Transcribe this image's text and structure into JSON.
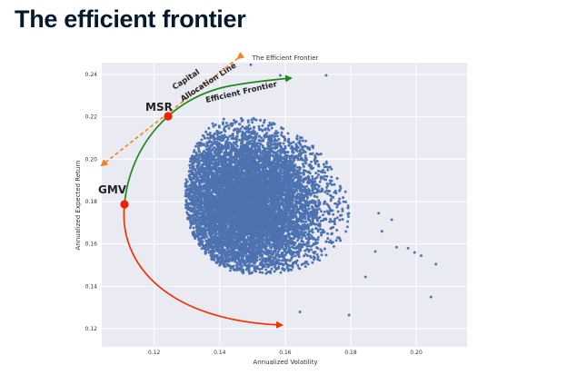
{
  "slide": {
    "title": "The efficient frontier"
  },
  "chart_data": {
    "type": "scatter",
    "title": "The Efficient Frontier",
    "xlabel": "Annualized Volatility",
    "ylabel": "Annualized Expected Return",
    "xlim": [
      0.104,
      0.2155
    ],
    "ylim": [
      0.1115,
      0.2455
    ],
    "x_ticks": [
      "0.12",
      "0.14",
      "0.16",
      "0.18",
      "0.20"
    ],
    "y_ticks": [
      "0.12",
      "0.14",
      "0.16",
      "0.18",
      "0.20",
      "0.22",
      "0.24"
    ],
    "grid": true,
    "style": "seaborn-darkgrid",
    "colors": {
      "points": "#4c72b0",
      "frontier": "#1a8a1a",
      "cal": "#f58220",
      "lower": "#ee3300",
      "marker": "#ee2200",
      "plot_bg": "#eaeaf2",
      "title": "#05192d"
    },
    "cloud": {
      "center_volatility": 0.146,
      "center_return": 0.179,
      "n_points": 9000
    },
    "outlier_points": [
      {
        "x": 0.1995,
        "y": 0.156
      },
      {
        "x": 0.2015,
        "y": 0.1545
      },
      {
        "x": 0.206,
        "y": 0.1505
      },
      {
        "x": 0.2045,
        "y": 0.135
      },
      {
        "x": 0.1975,
        "y": 0.158
      },
      {
        "x": 0.194,
        "y": 0.1585
      },
      {
        "x": 0.1895,
        "y": 0.166
      },
      {
        "x": 0.1885,
        "y": 0.1745
      },
      {
        "x": 0.1875,
        "y": 0.1565
      },
      {
        "x": 0.1845,
        "y": 0.1445
      },
      {
        "x": 0.1725,
        "y": 0.2395
      },
      {
        "x": 0.1585,
        "y": 0.2395
      },
      {
        "x": 0.1795,
        "y": 0.1265
      },
      {
        "x": 0.1645,
        "y": 0.128
      },
      {
        "x": 0.1495,
        "y": 0.2445
      },
      {
        "x": 0.1925,
        "y": 0.1715
      }
    ],
    "special_points": [
      {
        "label": "MSR",
        "x": 0.123,
        "y": 0.2275
      },
      {
        "label": "GMV",
        "x": 0.1095,
        "y": 0.181
      }
    ],
    "annotations": [
      {
        "name": "efficient-frontier",
        "text": "Efficient Frontier"
      },
      {
        "name": "capital-allocation-line",
        "text": "Capital\nAllocation Line"
      }
    ]
  }
}
